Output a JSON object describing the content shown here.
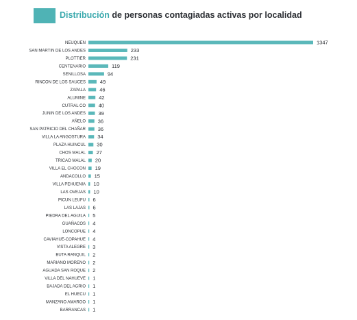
{
  "header": {
    "title_accent": "Distribución",
    "title_rest": " de personas contagiadas activas por localidad",
    "accent_color": "#4fb3b5"
  },
  "chart_data": {
    "type": "bar",
    "orientation": "horizontal",
    "title": "Distribución de personas contagiadas activas por localidad",
    "bar_color": "#5bb8ba",
    "grid": false,
    "categories": [
      "NEUQUEN",
      "SAN MARTIN DE LOS ANDES",
      "PLOTTIER",
      "CENTENARIO",
      "SENILLOSA",
      "RINCON DE LOS SAUCES",
      "ZAPALA",
      "ALUMINE",
      "CUTRAL CO",
      "JUNIN DE LOS ANDES",
      "AÑELO",
      "SAN PATRICIO DEL CHAÑAR",
      "VILLA LA ANGOSTURA",
      "PLAZA HUINCUL",
      "CHOS MALAL",
      "TRICAO MALAL",
      "VILLA EL CHOCON",
      "ANDACOLLO",
      "VILLA PEHUENIA",
      "LAS OVEJAS",
      "PICUN LEUFU",
      "LAS LAJAS",
      "PIEDRA DEL AGUILA",
      "GUAÑACOS",
      "LONCOPUE",
      "CAVIAHUE-COPAHUE",
      "VISTA ALEGRE",
      "BUTA RANQUIL",
      "MARIANO MORENO",
      "AGUADA SAN ROQUE",
      "VILLA DEL NAHUEVE",
      "BAJADA DEL AGRIO",
      "EL HUECU",
      "MANZANO AMARGO",
      "BARRANCAS"
    ],
    "values": [
      1347,
      233,
      231,
      119,
      94,
      49,
      46,
      42,
      40,
      39,
      36,
      36,
      34,
      30,
      27,
      20,
      19,
      15,
      10,
      10,
      6,
      6,
      5,
      4,
      4,
      4,
      3,
      2,
      2,
      2,
      1,
      1,
      1,
      1,
      1
    ],
    "xlim": [
      0,
      1347
    ]
  }
}
